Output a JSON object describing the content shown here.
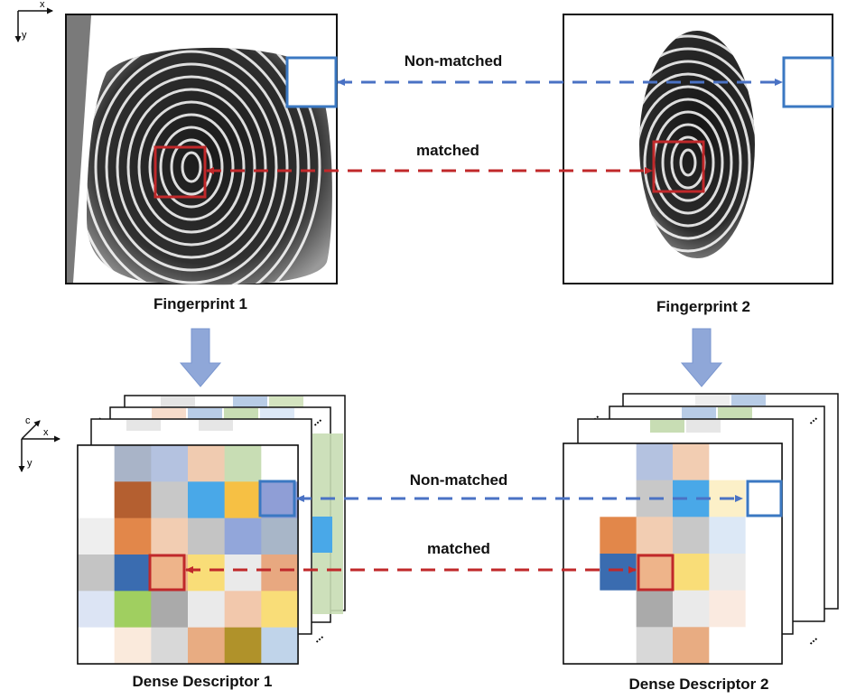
{
  "axes_top": {
    "x": "x",
    "y": "y"
  },
  "axes_bottom": {
    "c": "c",
    "x": "x",
    "y": "y"
  },
  "labels": {
    "fingerprint1": "Fingerprint 1",
    "fingerprint2": "Fingerprint 2",
    "descriptor1": "Dense Descriptor 1",
    "descriptor2": "Dense Descriptor 2"
  },
  "top_links": {
    "non_matched": "Non-matched",
    "matched": "matched"
  },
  "bottom_links": {
    "non_matched": "Non-matched",
    "matched": "matched"
  },
  "ellipsis": "...",
  "colors": {
    "non_matched": "#4a72c4",
    "matched": "#c0282a",
    "box_blue": "#3b78c2",
    "box_red": "#c0282a",
    "flow_arrow": "#8fa7d8"
  },
  "descriptor1_grid": [
    [
      "#ffffff",
      "#a9b4c8",
      "#b4c2e0",
      "#f0cbb0",
      "#c8ddb4",
      "#ffffff"
    ],
    [
      "#ffffff",
      "#b45f30",
      "#c8c8c8",
      "#49a8e8",
      "#f6c044",
      "#8f9ed6"
    ],
    [
      "#eeeeee",
      "#e2874a",
      "#f2cdb2",
      "#c4c4c4",
      "#92a6da",
      "#a8b6c8"
    ],
    [
      "#c4c4c4",
      "#3a6cb0",
      "#eeb48a",
      "#f9dd78",
      "#eaeaea",
      "#e8a880"
    ],
    [
      "#dce4f4",
      "#a0cf60",
      "#aaaaaa",
      "#eaeaea",
      "#f2c8ac",
      "#f9dd78"
    ],
    [
      "#ffffff",
      "#faeadc",
      "#d8d8d8",
      "#e8ac82",
      "#b0922a",
      "#c0d4ea"
    ]
  ],
  "descriptor2_grid": [
    [
      "#ffffff",
      "#ffffff",
      "#b4c2e0",
      "#f2cdb2",
      "#ffffff",
      "#ffffff"
    ],
    [
      "#ffffff",
      "#ffffff",
      "#c8c8c8",
      "#49a8e8",
      "#fcf0c8",
      "#ffffff"
    ],
    [
      "#ffffff",
      "#e2874a",
      "#f2cdb2",
      "#c8c8c8",
      "#dce8f6",
      "#ffffff"
    ],
    [
      "#ffffff",
      "#3a6cb0",
      "#eeb48a",
      "#f9dd78",
      "#eaeaea",
      "#ffffff"
    ],
    [
      "#ffffff",
      "#ffffff",
      "#aaaaaa",
      "#eaeaea",
      "#faeae0",
      "#ffffff"
    ],
    [
      "#ffffff",
      "#ffffff",
      "#d8d8d8",
      "#e8ac82",
      "#ffffff",
      "#ffffff"
    ]
  ]
}
